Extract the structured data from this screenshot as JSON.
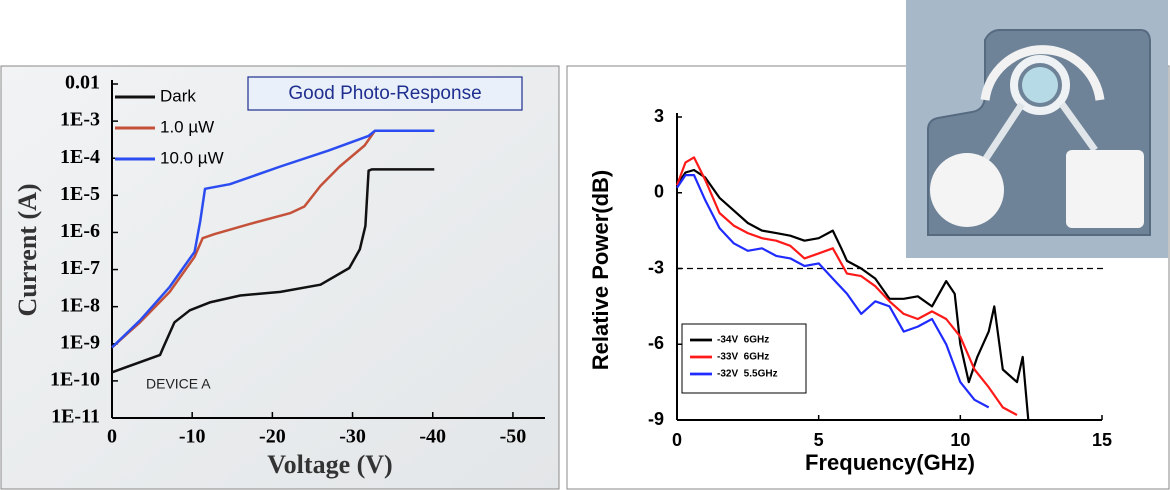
{
  "chart_data": [
    {
      "type": "line",
      "y_log": true,
      "x_label": "Voltage (V)",
      "y_label": "Current (A)",
      "xlim": [
        0,
        -54
      ],
      "xticks": [
        0,
        -10,
        -20,
        -30,
        -40,
        -50
      ],
      "ylim": [
        1e-11,
        0.01
      ],
      "yticks": [
        {
          "value": 1e-11,
          "label": "1E-11"
        },
        {
          "value": 1e-10,
          "label": "1E-10"
        },
        {
          "value": 1e-09,
          "label": "1E-9"
        },
        {
          "value": 1e-08,
          "label": "1E-8"
        },
        {
          "value": 1e-07,
          "label": "1E-7"
        },
        {
          "value": 1e-06,
          "label": "1E-6"
        },
        {
          "value": 1e-05,
          "label": "1E-5"
        },
        {
          "value": 0.0001,
          "label": "1E-4"
        },
        {
          "value": 0.001,
          "label": "1E-3"
        },
        0.01
      ],
      "legend": "upper-left",
      "annotations": [
        "Good Photo-Response",
        "DEVICE A"
      ],
      "series": [
        {
          "name": "Dark",
          "color": "#111111",
          "x": [
            0,
            -6,
            -6.4,
            -7.8,
            -9.7,
            -12.2,
            -16,
            -21,
            -26,
            -29.6,
            -30.9,
            -31.6,
            -32,
            -32.4,
            -40.2
          ],
          "values": [
            1.7e-10,
            5e-10,
            8e-10,
            3.8e-09,
            8e-09,
            1.3e-08,
            2e-08,
            2.5e-08,
            3.9e-08,
            1.1e-07,
            3.5e-07,
            1.5e-06,
            4.6e-05,
            5e-05,
            5e-05
          ]
        },
        {
          "name": "1.0 µW",
          "color": "#c4513a",
          "x": [
            0,
            -3.5,
            -7.2,
            -10.3,
            -11.3,
            -12.8,
            -17.2,
            -22.2,
            -24,
            -26,
            -28.4,
            -31.5,
            -32.8,
            -40.2
          ],
          "values": [
            8e-10,
            3.8e-09,
            2.5e-08,
            2.2e-07,
            7e-07,
            9e-07,
            1.7e-06,
            3.3e-06,
            5e-06,
            1.8e-05,
            6e-05,
            0.00022,
            0.00055,
            0.00055
          ]
        },
        {
          "name": "10.0 µW",
          "color": "#2a4cf0",
          "x": [
            0,
            -3.5,
            -7.2,
            -10.3,
            -11,
            -11.6,
            -14.7,
            -21,
            -27,
            -32,
            -32.8,
            -40.2
          ],
          "values": [
            8e-10,
            4.3e-09,
            3.4e-08,
            3e-07,
            2e-06,
            1.5e-05,
            2e-05,
            6e-05,
            0.00016,
            0.0004,
            0.00055,
            0.00055
          ]
        }
      ]
    },
    {
      "type": "line",
      "y_log": false,
      "x_label": "Frequency(GHz)",
      "y_label": "Relative Power(dB)",
      "xlim": [
        0,
        15
      ],
      "xticks": [
        0,
        5,
        10,
        15
      ],
      "ylim": [
        -9,
        3
      ],
      "yticks": [
        -9,
        -6,
        -3,
        0,
        3
      ],
      "hline": -3,
      "hline_style": "dashed",
      "legend": "lower-left",
      "series": [
        {
          "name": "-34V  6GHz",
          "color": "#000000",
          "x": [
            0,
            0.3,
            0.6,
            1,
            1.5,
            2,
            2.5,
            3,
            3.5,
            4,
            4.5,
            5,
            5.5,
            5.8,
            6,
            6.5,
            7,
            7.5,
            8,
            8.5,
            9,
            9.5,
            9.8,
            10,
            10.3,
            10.6,
            11,
            11.2,
            11.5,
            12,
            12.2,
            12.4
          ],
          "values": [
            0.3,
            0.8,
            0.9,
            0.6,
            -0.2,
            -0.7,
            -1.2,
            -1.5,
            -1.6,
            -1.7,
            -1.9,
            -1.8,
            -1.5,
            -2.2,
            -2.7,
            -3,
            -3.4,
            -4.2,
            -4.2,
            -4.1,
            -4.5,
            -3.5,
            -4,
            -6,
            -7.5,
            -6.5,
            -5.5,
            -4.5,
            -7,
            -7.5,
            -6.5,
            -9
          ]
        },
        {
          "name": "-33V  6GHz",
          "color": "#ff1a1a",
          "x": [
            0,
            0.3,
            0.6,
            1,
            1.5,
            2,
            2.5,
            3,
            3.5,
            4,
            4.5,
            5,
            5.5,
            5.8,
            6,
            6.5,
            7,
            7.5,
            8,
            8.5,
            9,
            9.5,
            10,
            10.5,
            11,
            11.5,
            12
          ],
          "values": [
            0.3,
            1.2,
            1.4,
            0.5,
            -0.8,
            -1.3,
            -1.6,
            -1.8,
            -1.9,
            -2.1,
            -2.6,
            -2.4,
            -2.2,
            -2.8,
            -3.2,
            -3.3,
            -3.7,
            -4.3,
            -4.8,
            -5,
            -4.7,
            -5,
            -5.7,
            -7,
            -7.7,
            -8.5,
            -8.8
          ]
        },
        {
          "name": "-32V  5.5GHz",
          "color": "#1f2bff",
          "x": [
            0,
            0.3,
            0.6,
            1,
            1.5,
            2,
            2.5,
            3,
            3.5,
            4,
            4.5,
            5,
            5.5,
            6,
            6.5,
            7,
            7.5,
            8,
            8.5,
            9,
            9.5,
            10,
            10.5,
            11
          ],
          "values": [
            0.2,
            0.7,
            0.7,
            -0.3,
            -1.4,
            -2,
            -2.3,
            -2.2,
            -2.5,
            -2.6,
            -2.9,
            -2.8,
            -3.4,
            -4,
            -4.8,
            -4.3,
            -4.5,
            -5.5,
            -5.3,
            -5,
            -6,
            -7.5,
            -8.2,
            -8.5
          ]
        }
      ]
    }
  ]
}
